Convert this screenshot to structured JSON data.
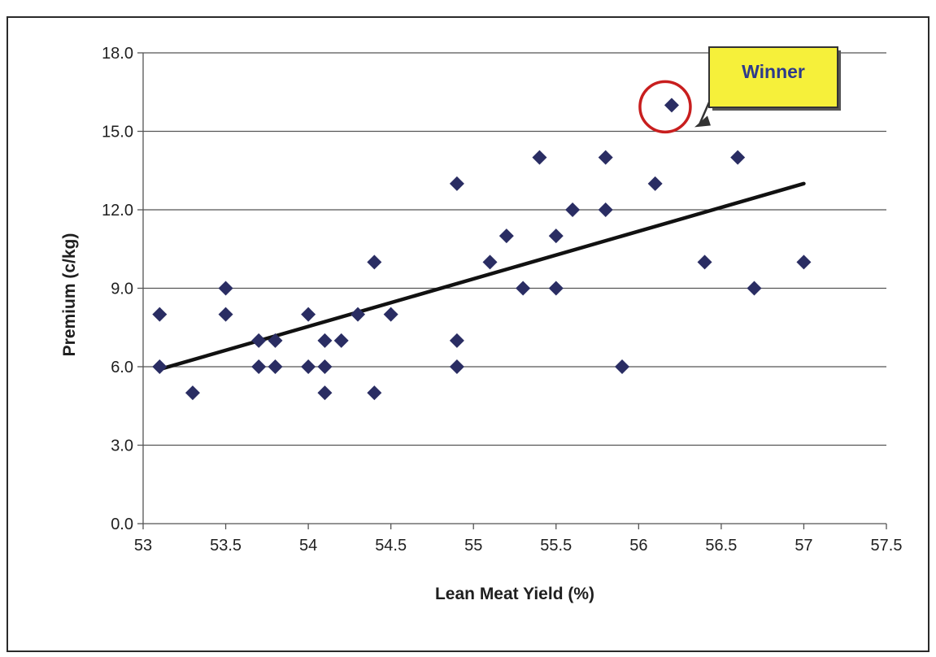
{
  "chart_data": {
    "type": "scatter",
    "title": "",
    "xlabel": "Lean Meat Yield (%)",
    "ylabel": "Premium (c/kg)",
    "xlim": [
      53,
      57.5
    ],
    "ylim": [
      0,
      18
    ],
    "x_ticks": [
      "53",
      "53.5",
      "54",
      "54.5",
      "55",
      "55.5",
      "56",
      "56.5",
      "57",
      "57.5"
    ],
    "y_ticks": [
      "0.0",
      "3.0",
      "6.0",
      "9.0",
      "12.0",
      "15.0",
      "18.0"
    ],
    "x_tick_values": [
      53,
      53.5,
      54,
      54.5,
      55,
      55.5,
      56,
      56.5,
      57,
      57.5
    ],
    "y_tick_values": [
      0,
      3,
      6,
      9,
      12,
      15,
      18
    ],
    "grid": "horizontal",
    "legend": "none",
    "points": [
      {
        "x": 53.1,
        "y": 8
      },
      {
        "x": 53.1,
        "y": 6
      },
      {
        "x": 53.3,
        "y": 5
      },
      {
        "x": 53.5,
        "y": 9
      },
      {
        "x": 53.5,
        "y": 8
      },
      {
        "x": 53.7,
        "y": 7
      },
      {
        "x": 53.7,
        "y": 6
      },
      {
        "x": 53.8,
        "y": 7
      },
      {
        "x": 53.8,
        "y": 6
      },
      {
        "x": 54.0,
        "y": 8
      },
      {
        "x": 54.0,
        "y": 6
      },
      {
        "x": 54.1,
        "y": 7
      },
      {
        "x": 54.1,
        "y": 6
      },
      {
        "x": 54.1,
        "y": 5
      },
      {
        "x": 54.2,
        "y": 7
      },
      {
        "x": 54.3,
        "y": 8
      },
      {
        "x": 54.4,
        "y": 10
      },
      {
        "x": 54.4,
        "y": 5
      },
      {
        "x": 54.5,
        "y": 8
      },
      {
        "x": 54.9,
        "y": 13
      },
      {
        "x": 54.9,
        "y": 7
      },
      {
        "x": 54.9,
        "y": 6
      },
      {
        "x": 55.1,
        "y": 10
      },
      {
        "x": 55.2,
        "y": 11
      },
      {
        "x": 55.3,
        "y": 9
      },
      {
        "x": 55.4,
        "y": 14
      },
      {
        "x": 55.5,
        "y": 11
      },
      {
        "x": 55.5,
        "y": 9
      },
      {
        "x": 55.6,
        "y": 12
      },
      {
        "x": 55.8,
        "y": 14
      },
      {
        "x": 55.8,
        "y": 12
      },
      {
        "x": 55.9,
        "y": 6
      },
      {
        "x": 56.1,
        "y": 13
      },
      {
        "x": 56.2,
        "y": 16
      },
      {
        "x": 56.4,
        "y": 10
      },
      {
        "x": 56.6,
        "y": 14
      },
      {
        "x": 56.7,
        "y": 9
      },
      {
        "x": 57.0,
        "y": 10
      }
    ],
    "trendline": {
      "x": [
        53.1,
        57.0
      ],
      "y": [
        5.9,
        13.0
      ]
    },
    "annotation": {
      "text": "Winner",
      "x": 56.2,
      "y": 16
    },
    "colors": {
      "marker": "#2a2d63",
      "trendline": "#111111",
      "gridline": "#555555",
      "circle": "#c81e1e",
      "callout_fill": "#f6f03a",
      "callout_text": "#2d3a8c"
    }
  }
}
